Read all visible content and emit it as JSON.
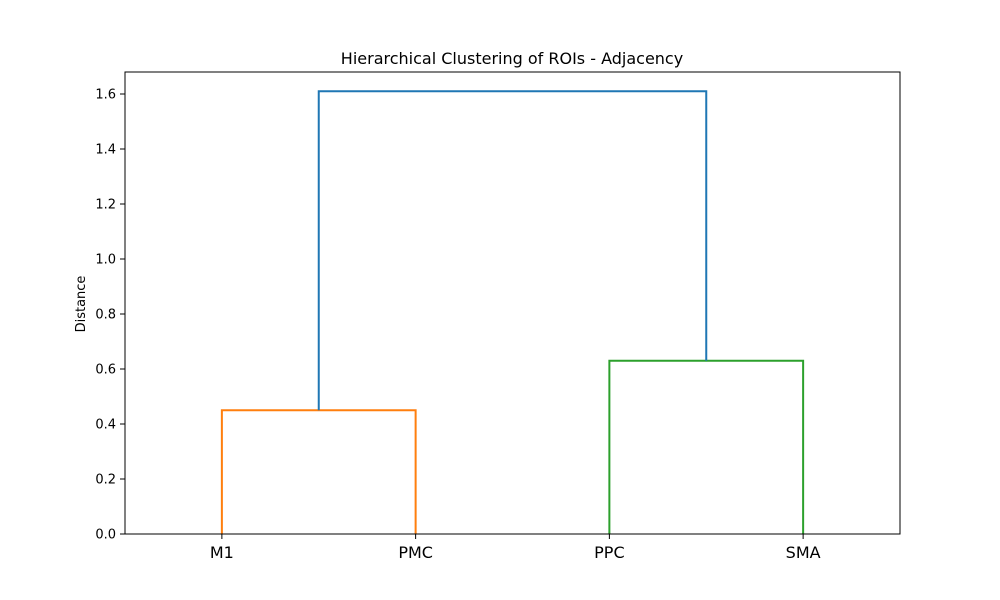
{
  "chart_data": {
    "type": "dendrogram",
    "title": "Hierarchical Clustering of ROIs - Adjacency",
    "xlabel": "",
    "ylabel": "Distance",
    "leaves": [
      "M1",
      "PMC",
      "PPC",
      "SMA"
    ],
    "ylim": [
      0,
      1.68
    ],
    "yticks": [
      "0.0",
      "0.2",
      "0.4",
      "0.6",
      "0.8",
      "1.0",
      "1.2",
      "1.4",
      "1.6"
    ],
    "grid": false,
    "links": [
      {
        "left": "M1",
        "right": "PMC",
        "height": 0.45,
        "color": "#ff7f0e"
      },
      {
        "left": "PPC",
        "right": "SMA",
        "height": 0.63,
        "color": "#2ca02c"
      },
      {
        "left": "M1+PMC",
        "right": "PPC+SMA",
        "height": 1.61,
        "color": "#1f77b4"
      }
    ]
  }
}
